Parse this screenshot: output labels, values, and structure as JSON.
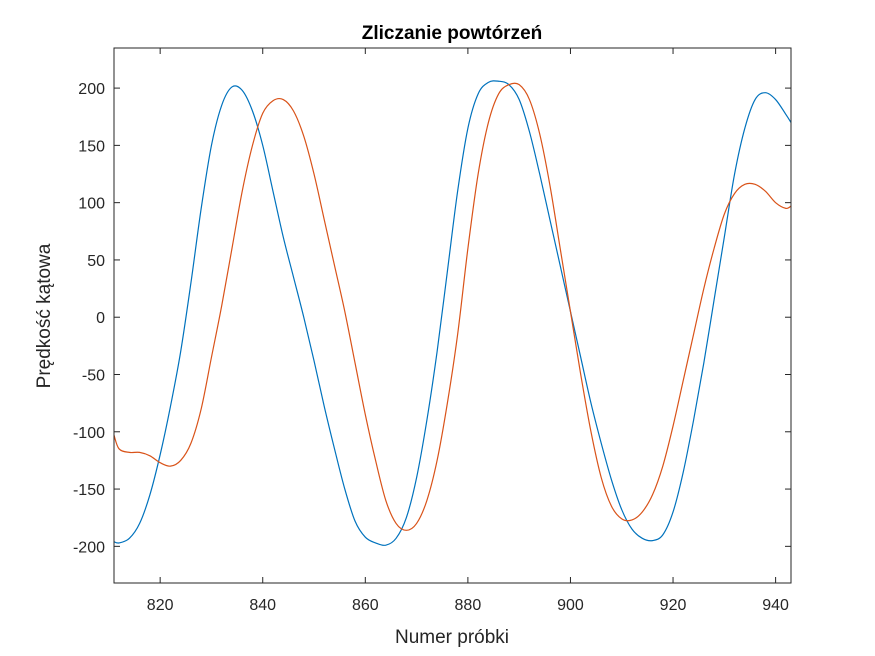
{
  "chart_data": {
    "type": "line",
    "title": "Zliczanie powtórzeń",
    "xlabel": "Numer próbki",
    "ylabel": "Prędkość kątowa",
    "xlim": [
      811,
      943
    ],
    "ylim": [
      -232,
      235
    ],
    "xticks": [
      820,
      840,
      860,
      880,
      900,
      920,
      940
    ],
    "yticks": [
      -200,
      -150,
      -100,
      -50,
      0,
      50,
      100,
      150,
      200
    ],
    "grid": false,
    "box": true,
    "series": [
      {
        "color": "#0072BD",
        "x": [
          811,
          812,
          814,
          816,
          818,
          820,
          822,
          824,
          826,
          828,
          830,
          832,
          834,
          836,
          838,
          840,
          842,
          844,
          846,
          848,
          850,
          852,
          854,
          856,
          858,
          860,
          862,
          864,
          866,
          868,
          870,
          872,
          874,
          876,
          878,
          880,
          882,
          884,
          886,
          888,
          890,
          892,
          894,
          896,
          898,
          900,
          902,
          904,
          906,
          908,
          910,
          912,
          914,
          916,
          918,
          920,
          922,
          924,
          926,
          928,
          930,
          932,
          934,
          936,
          938,
          940,
          942,
          943
        ],
        "y": [
          -196,
          -197,
          -193,
          -180,
          -155,
          -120,
          -78,
          -30,
          30,
          95,
          150,
          185,
          201,
          198,
          180,
          150,
          110,
          70,
          35,
          0,
          -38,
          -78,
          -115,
          -150,
          -178,
          -192,
          -197,
          -199,
          -193,
          -175,
          -140,
          -90,
          -30,
          40,
          110,
          165,
          195,
          205,
          206,
          203,
          190,
          162,
          125,
          85,
          45,
          5,
          -35,
          -75,
          -110,
          -142,
          -168,
          -185,
          -193,
          -195,
          -190,
          -170,
          -135,
          -90,
          -40,
          15,
          70,
          125,
          165,
          190,
          196,
          190,
          177,
          170
        ]
      },
      {
        "color": "#D95319",
        "x": [
          811,
          812,
          814,
          816,
          818,
          820,
          822,
          824,
          826,
          828,
          830,
          832,
          834,
          836,
          838,
          840,
          842,
          844,
          846,
          848,
          850,
          852,
          854,
          856,
          858,
          860,
          862,
          864,
          866,
          868,
          870,
          872,
          874,
          876,
          878,
          880,
          882,
          884,
          886,
          888,
          890,
          892,
          894,
          896,
          898,
          900,
          902,
          904,
          906,
          908,
          910,
          912,
          914,
          916,
          918,
          920,
          922,
          924,
          926,
          928,
          930,
          932,
          934,
          936,
          938,
          940,
          942,
          943
        ],
        "y": [
          -103,
          -115,
          -118,
          -118,
          -121,
          -127,
          -130,
          -125,
          -110,
          -80,
          -35,
          10,
          60,
          110,
          150,
          178,
          189,
          190,
          180,
          158,
          125,
          85,
          45,
          5,
          -40,
          -85,
          -125,
          -160,
          -180,
          -186,
          -180,
          -160,
          -125,
          -75,
          -15,
          60,
          125,
          170,
          195,
          203,
          203,
          190,
          160,
          115,
          60,
          5,
          -50,
          -100,
          -140,
          -165,
          -176,
          -177,
          -170,
          -155,
          -130,
          -95,
          -55,
          -15,
          25,
          60,
          90,
          108,
          116,
          116,
          110,
          100,
          95,
          97
        ]
      }
    ]
  }
}
